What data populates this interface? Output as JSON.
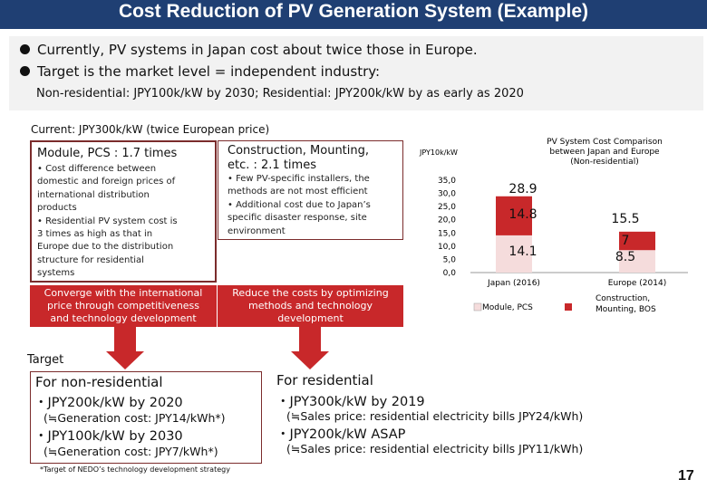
{
  "header": {
    "title": "Cost Reduction of PV Generation System (Example)"
  },
  "intro": {
    "bullets": [
      "Currently, PV systems in Japan cost about twice those in Europe.",
      "Target is the market level = independent industry:"
    ],
    "sub": "Non-residential: JPY100k/kW by 2030; Residential:  JPY200k/kW by as early as 2020"
  },
  "current": {
    "label": "Current: JPY300k/kW (twice European price)",
    "module_box": {
      "title": "Module, PCS : 1.7 times",
      "items": [
        "• Cost difference between",
        "   domestic and foreign prices of",
        "   international distribution",
        "   products",
        "• Residential PV system cost is",
        "   3 times as high as that in",
        "   Europe due to the distribution",
        "   structure for residential",
        "   systems"
      ]
    },
    "construction_box": {
      "title_line1": "Construction, Mounting,",
      "title_line2": "etc. : 2.1 times",
      "items": [
        "• Few PV-specific installers, the",
        "   methods are not most efficient",
        "• Additional cost due to Japan’s",
        "   specific disaster response, site",
        "   environment"
      ]
    },
    "converge_box": [
      "Converge with the international",
      "price through competitiveness",
      "and technology development"
    ],
    "reduce_box": [
      "Reduce the costs by optimizing",
      "methods and technology",
      "development"
    ]
  },
  "target": {
    "label": "Target",
    "non_residential": {
      "title": "For non-residential",
      "line1": "・JPY200k/kW by 2020",
      "line1_note": "(≒Generation cost: JPY14/kWh*)",
      "line2": "・JPY100k/kW by 2030",
      "line2_note": "(≒Generation cost: JPY7/kWh*)"
    },
    "residential": {
      "title": "For residential",
      "line1": "・JPY300k/kW by 2019",
      "line1_note": "(≒Sales price: residential electricity bills JPY24/kWh)",
      "line2": "・JPY200k/kW ASAP",
      "line2_note": "(≒Sales price: residential electricity bills JPY11/kWh)"
    }
  },
  "footnote": "*Target of  NEDO’s technology development strategy",
  "page_number": "17",
  "colors": {
    "title_bg": "#1f3f73",
    "box_border": "#7b2c2c",
    "accent_red": "#c8282a",
    "module_bar": "#f5dcdc",
    "construction_bar": "#c8282a"
  },
  "chart_data": {
    "type": "bar",
    "stacked": true,
    "title": [
      "PV System Cost Comparison",
      "between Japan and Europe",
      "(Non-residential)"
    ],
    "unit_label": "JPY10k/kW",
    "categories": [
      "Japan (2016)",
      "Europe (2014)"
    ],
    "series": [
      {
        "name": "Module, PCS",
        "values": [
          14.1,
          8.5
        ]
      },
      {
        "name": "Construction, Mounting, BOS",
        "values": [
          14.8,
          7
        ]
      }
    ],
    "totals": [
      28.9,
      15.5
    ],
    "data_labels": [
      "14.1",
      "14.8",
      "28.9",
      "8.5",
      "7",
      "15.5"
    ],
    "ylim": [
      0,
      35
    ],
    "yticks": [
      "35,0",
      "30,0",
      "25,0",
      "20,0",
      "15,0",
      "10,0",
      "5,0",
      "0,0"
    ],
    "legend": [
      "Module, PCS",
      "Construction, Mounting, BOS"
    ],
    "legend_position": "bottom"
  }
}
